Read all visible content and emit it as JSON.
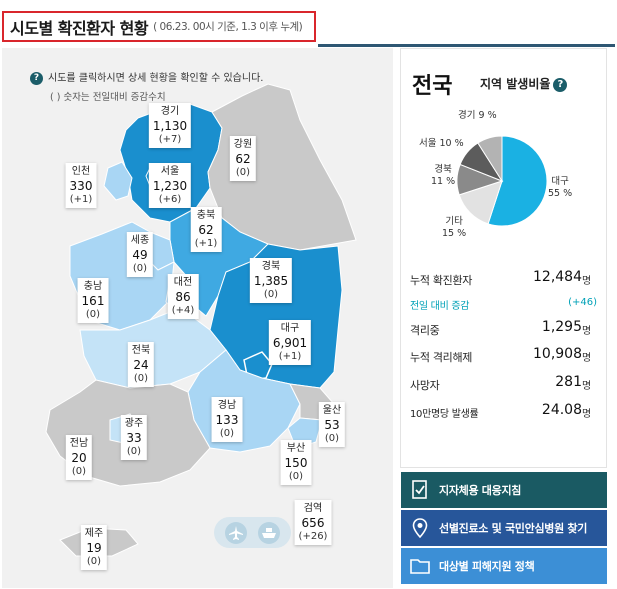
{
  "title": {
    "main": "시도별 확진환자 현황",
    "sub": "( 06.23. 00시 기준, 1.3 이후 누계)"
  },
  "info": {
    "text": "시도를 클릭하시면 상세 현황을 확인할 수 있습니다.",
    "sub": "( ) 숫자는 전일대비 증감수치"
  },
  "regions": [
    {
      "name": "경기",
      "value": "1,130",
      "delta": "(+7)"
    },
    {
      "name": "강원",
      "value": "62",
      "delta": "(0)"
    },
    {
      "name": "인천",
      "value": "330",
      "delta": "(+1)"
    },
    {
      "name": "서울",
      "value": "1,230",
      "delta": "(+6)"
    },
    {
      "name": "충북",
      "value": "62",
      "delta": "(+1)"
    },
    {
      "name": "세종",
      "value": "49",
      "delta": "(0)"
    },
    {
      "name": "충남",
      "value": "161",
      "delta": "(0)"
    },
    {
      "name": "대전",
      "value": "86",
      "delta": "(+4)"
    },
    {
      "name": "경북",
      "value": "1,385",
      "delta": "(0)"
    },
    {
      "name": "대구",
      "value": "6,901",
      "delta": "(+1)"
    },
    {
      "name": "전북",
      "value": "24",
      "delta": "(0)"
    },
    {
      "name": "경남",
      "value": "133",
      "delta": "(0)"
    },
    {
      "name": "울산",
      "value": "53",
      "delta": "(0)"
    },
    {
      "name": "광주",
      "value": "33",
      "delta": "(0)"
    },
    {
      "name": "전남",
      "value": "20",
      "delta": "(0)"
    },
    {
      "name": "부산",
      "value": "150",
      "delta": "(0)"
    },
    {
      "name": "검역",
      "value": "656",
      "delta": "(+26)"
    },
    {
      "name": "제주",
      "value": "19",
      "delta": "(0)"
    }
  ],
  "side": {
    "title": "전국",
    "ratio_title": "지역 발생비율",
    "ratio_q": "?",
    "chart_data": {
      "type": "pie",
      "slices": [
        {
          "label": "대구",
          "value": 55,
          "text": "대구\n55 %",
          "color": "#1ab1e3"
        },
        {
          "label": "기타",
          "value": 15,
          "text": "기타\n15 %",
          "color": "#e2e2e2"
        },
        {
          "label": "경북",
          "value": 11,
          "text": "경북\n11 %",
          "color": "#8a8a8a"
        },
        {
          "label": "서울",
          "value": 10,
          "text": "서울 10 %",
          "color": "#5c5c5c"
        },
        {
          "label": "경기",
          "value": 9,
          "text": "경기 9 %",
          "color": "#b3b3b3"
        }
      ]
    },
    "stats": [
      {
        "label": "누적 확진환자",
        "value": "12,484",
        "unit": "명"
      },
      {
        "label": "전일 대비 증감",
        "value": "(+46)",
        "unit": ""
      },
      {
        "label": "격리중",
        "value": "1,295",
        "unit": "명"
      },
      {
        "label": "누적 격리해제",
        "value": "10,908",
        "unit": "명"
      },
      {
        "label": "사망자",
        "value": "281",
        "unit": "명"
      },
      {
        "label": "10만명당 발생률",
        "value": "24.08",
        "unit": "명"
      }
    ]
  },
  "buttons": [
    {
      "label": "지자체용 대응지침",
      "color": "#1a5a63"
    },
    {
      "label": "선별진료소 및 국민안심병원 찾기",
      "color": "#27569a"
    },
    {
      "label": "대상별 피해지원 정책",
      "color": "#3c8fd6"
    }
  ],
  "colors": {
    "dark": "#1a8fce",
    "mid": "#3fa9e2",
    "light": "#a9d6f4",
    "lighter": "#c4e3f7",
    "gray": "#c9c9c9"
  }
}
